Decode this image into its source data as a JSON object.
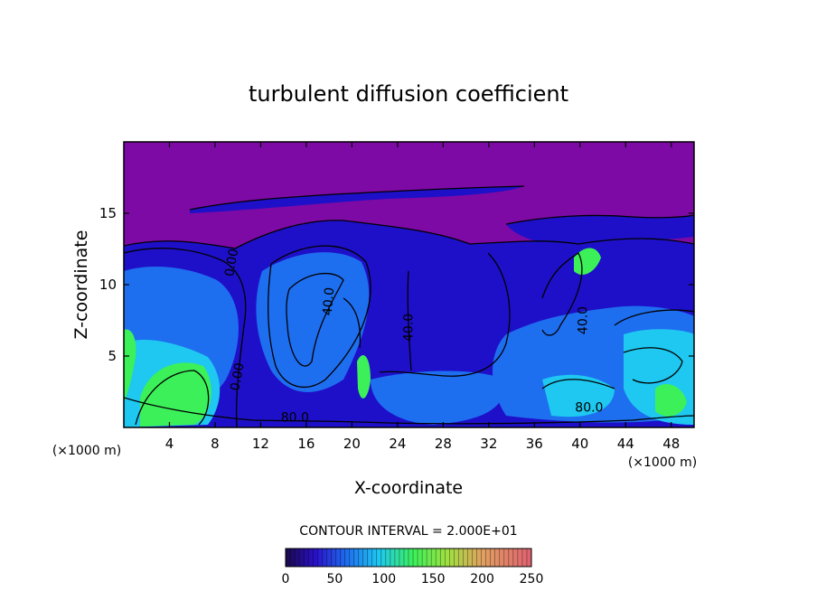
{
  "chart_data": {
    "type": "heatmap",
    "title": "turbulent diffusion coefficient",
    "xlabel": "X-coordinate",
    "ylabel": "Z-coordinate",
    "x_unit": "(×1000 m)",
    "x_unit_right": "(×1000 m)",
    "xlim": [
      0,
      50
    ],
    "ylim": [
      0,
      20
    ],
    "x_ticks": [
      4,
      8,
      12,
      16,
      20,
      24,
      28,
      32,
      36,
      40,
      44,
      48
    ],
    "y_ticks": [
      5,
      10,
      15
    ],
    "contour_interval_text": "CONTOUR INTERVAL = 2.000E+01",
    "contour_labels": [
      {
        "text": "40.0",
        "x": 18.3,
        "z": 8.8,
        "rotate": -85
      },
      {
        "text": "40.0",
        "x": 25.3,
        "z": 7.0,
        "rotate": -90
      },
      {
        "text": "80.0",
        "x": 15.0,
        "z": 0.4,
        "rotate": 0
      },
      {
        "text": "0.00",
        "x": 10.3,
        "z": 3.5,
        "rotate": -80
      },
      {
        "text": "80.0",
        "x": 40.8,
        "z": 1.1,
        "rotate": 0
      },
      {
        "text": "40.0",
        "x": 40.6,
        "z": 7.5,
        "rotate": -90
      },
      {
        "text": "0.00",
        "x": 9.8,
        "z": 11.5,
        "rotate": -80
      }
    ],
    "colorbar": {
      "min": 0,
      "max": 250,
      "tick_labels": [
        "0",
        "50",
        "100",
        "150",
        "200",
        "250"
      ],
      "tick_values": [
        0,
        50,
        100,
        150,
        200,
        250
      ]
    },
    "colors": {
      "background_field": "#7d0aa5",
      "low": "#1e10c8",
      "mid_blue": "#1e6ef0",
      "cyan": "#1ec8f0",
      "green": "#3cf05a",
      "contour": "#000000"
    }
  }
}
